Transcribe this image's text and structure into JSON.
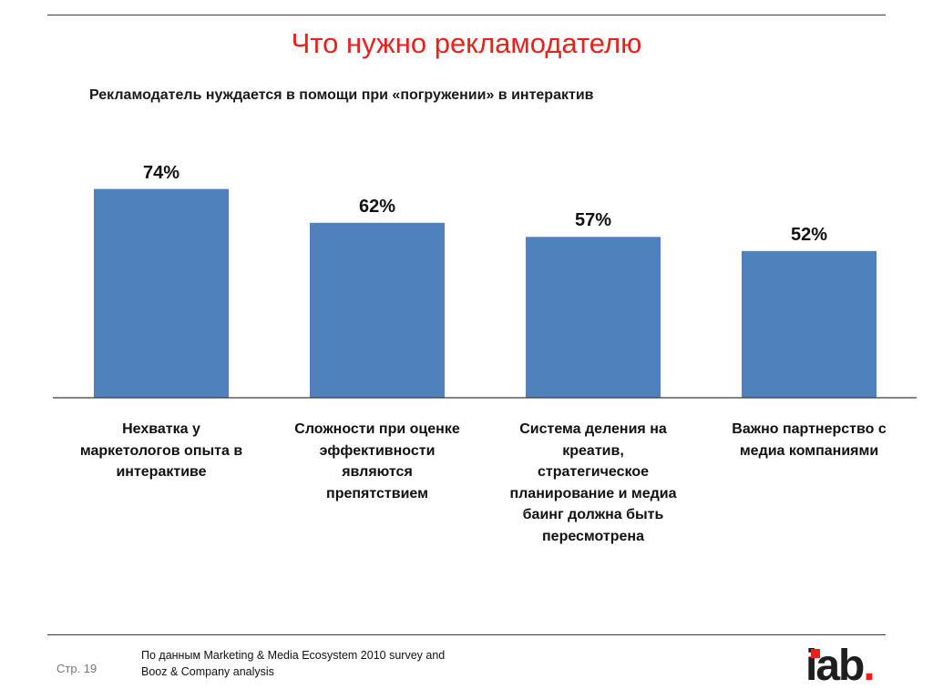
{
  "slide": {
    "title": "Что нужно рекламодателю",
    "subtitle": "Рекламодатель нуждается в помощи при «погружении» в интерактив"
  },
  "chart_data": {
    "type": "bar",
    "categories": [
      "Нехватка у\nмаркетологов опыта в\nинтерактиве",
      "Сложности при оценке\nэффективности\nявляются\nпрепятствием",
      "Система деления на\nкреатив,\nстратегическое\nпланирование и медиа\nбаинг должна быть\nпересмотрена",
      "Важно партнерство с\nмедиа компаниями"
    ],
    "values": [
      74,
      62,
      57,
      52
    ],
    "value_labels": [
      "74%",
      "62%",
      "57%",
      "52%"
    ],
    "ylim": [
      0,
      100
    ],
    "bar_color": "#4f81bd",
    "grid": false
  },
  "footer": {
    "page": "Стр. 19",
    "source": "По данным Marketing & Media Ecosystem 2010 survey and\nBooz & Company analysis",
    "logo_text": "iab",
    "logo_dot": ".",
    "accent_color": "#e8211c"
  }
}
